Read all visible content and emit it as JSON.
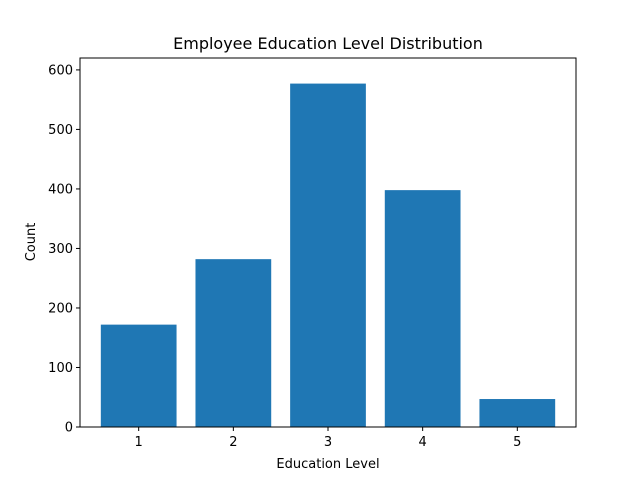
{
  "chart_data": {
    "type": "bar",
    "title": "Employee Education Level Distribution",
    "xlabel": "Education Level",
    "ylabel": "Count",
    "categories": [
      "1",
      "2",
      "3",
      "4",
      "5"
    ],
    "values": [
      172,
      282,
      577,
      398,
      47
    ],
    "ylim": [
      0,
      620
    ],
    "yticks": [
      0,
      100,
      200,
      300,
      400,
      500,
      600
    ],
    "bar_color": "#1f77b4",
    "grid": false,
    "legend": "none"
  }
}
